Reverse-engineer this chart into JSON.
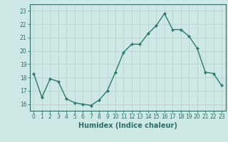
{
  "x": [
    0,
    1,
    2,
    3,
    4,
    5,
    6,
    7,
    8,
    9,
    10,
    11,
    12,
    13,
    14,
    15,
    16,
    17,
    18,
    19,
    20,
    21,
    22,
    23
  ],
  "y": [
    18.3,
    16.5,
    17.9,
    17.7,
    16.4,
    16.1,
    16.0,
    15.9,
    16.3,
    17.0,
    18.4,
    19.9,
    20.5,
    20.5,
    21.3,
    21.9,
    22.8,
    21.6,
    21.6,
    21.1,
    20.2,
    18.4,
    18.3,
    17.4
  ],
  "line_color": "#2d7a6e",
  "marker": "D",
  "marker_size": 2.0,
  "line_width": 1.0,
  "bg_color": "#cde8e5",
  "grid_color": "#b8d4d0",
  "xlabel": "Humidex (Indice chaleur)",
  "xlim": [
    -0.5,
    23.5
  ],
  "ylim": [
    15.5,
    23.5
  ],
  "yticks": [
    16,
    17,
    18,
    19,
    20,
    21,
    22,
    23
  ],
  "xticks": [
    0,
    1,
    2,
    3,
    4,
    5,
    6,
    7,
    8,
    9,
    10,
    11,
    12,
    13,
    14,
    15,
    16,
    17,
    18,
    19,
    20,
    21,
    22,
    23
  ],
  "tick_fontsize": 5.5,
  "xlabel_fontsize": 7.0
}
